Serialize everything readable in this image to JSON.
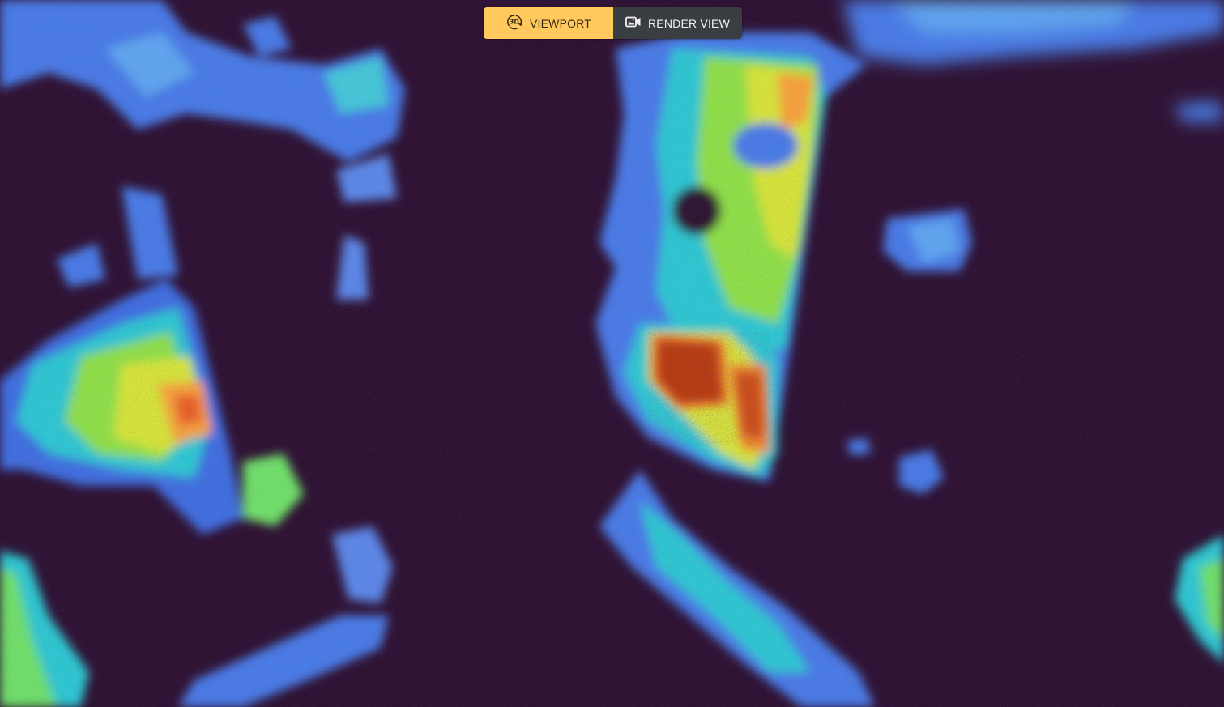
{
  "toolbar": {
    "active_mode": "viewport",
    "viewport_label": "VIEWPORT",
    "viewport_icon": "rotate-3d-icon",
    "render_label": "RENDER VIEW",
    "render_icon": "camera-image-icon",
    "active_color": "#ffc95e",
    "inactive_color": "#3a3d42"
  },
  "scene": {
    "background_color": "#2e1233",
    "colormap": "turbo"
  }
}
